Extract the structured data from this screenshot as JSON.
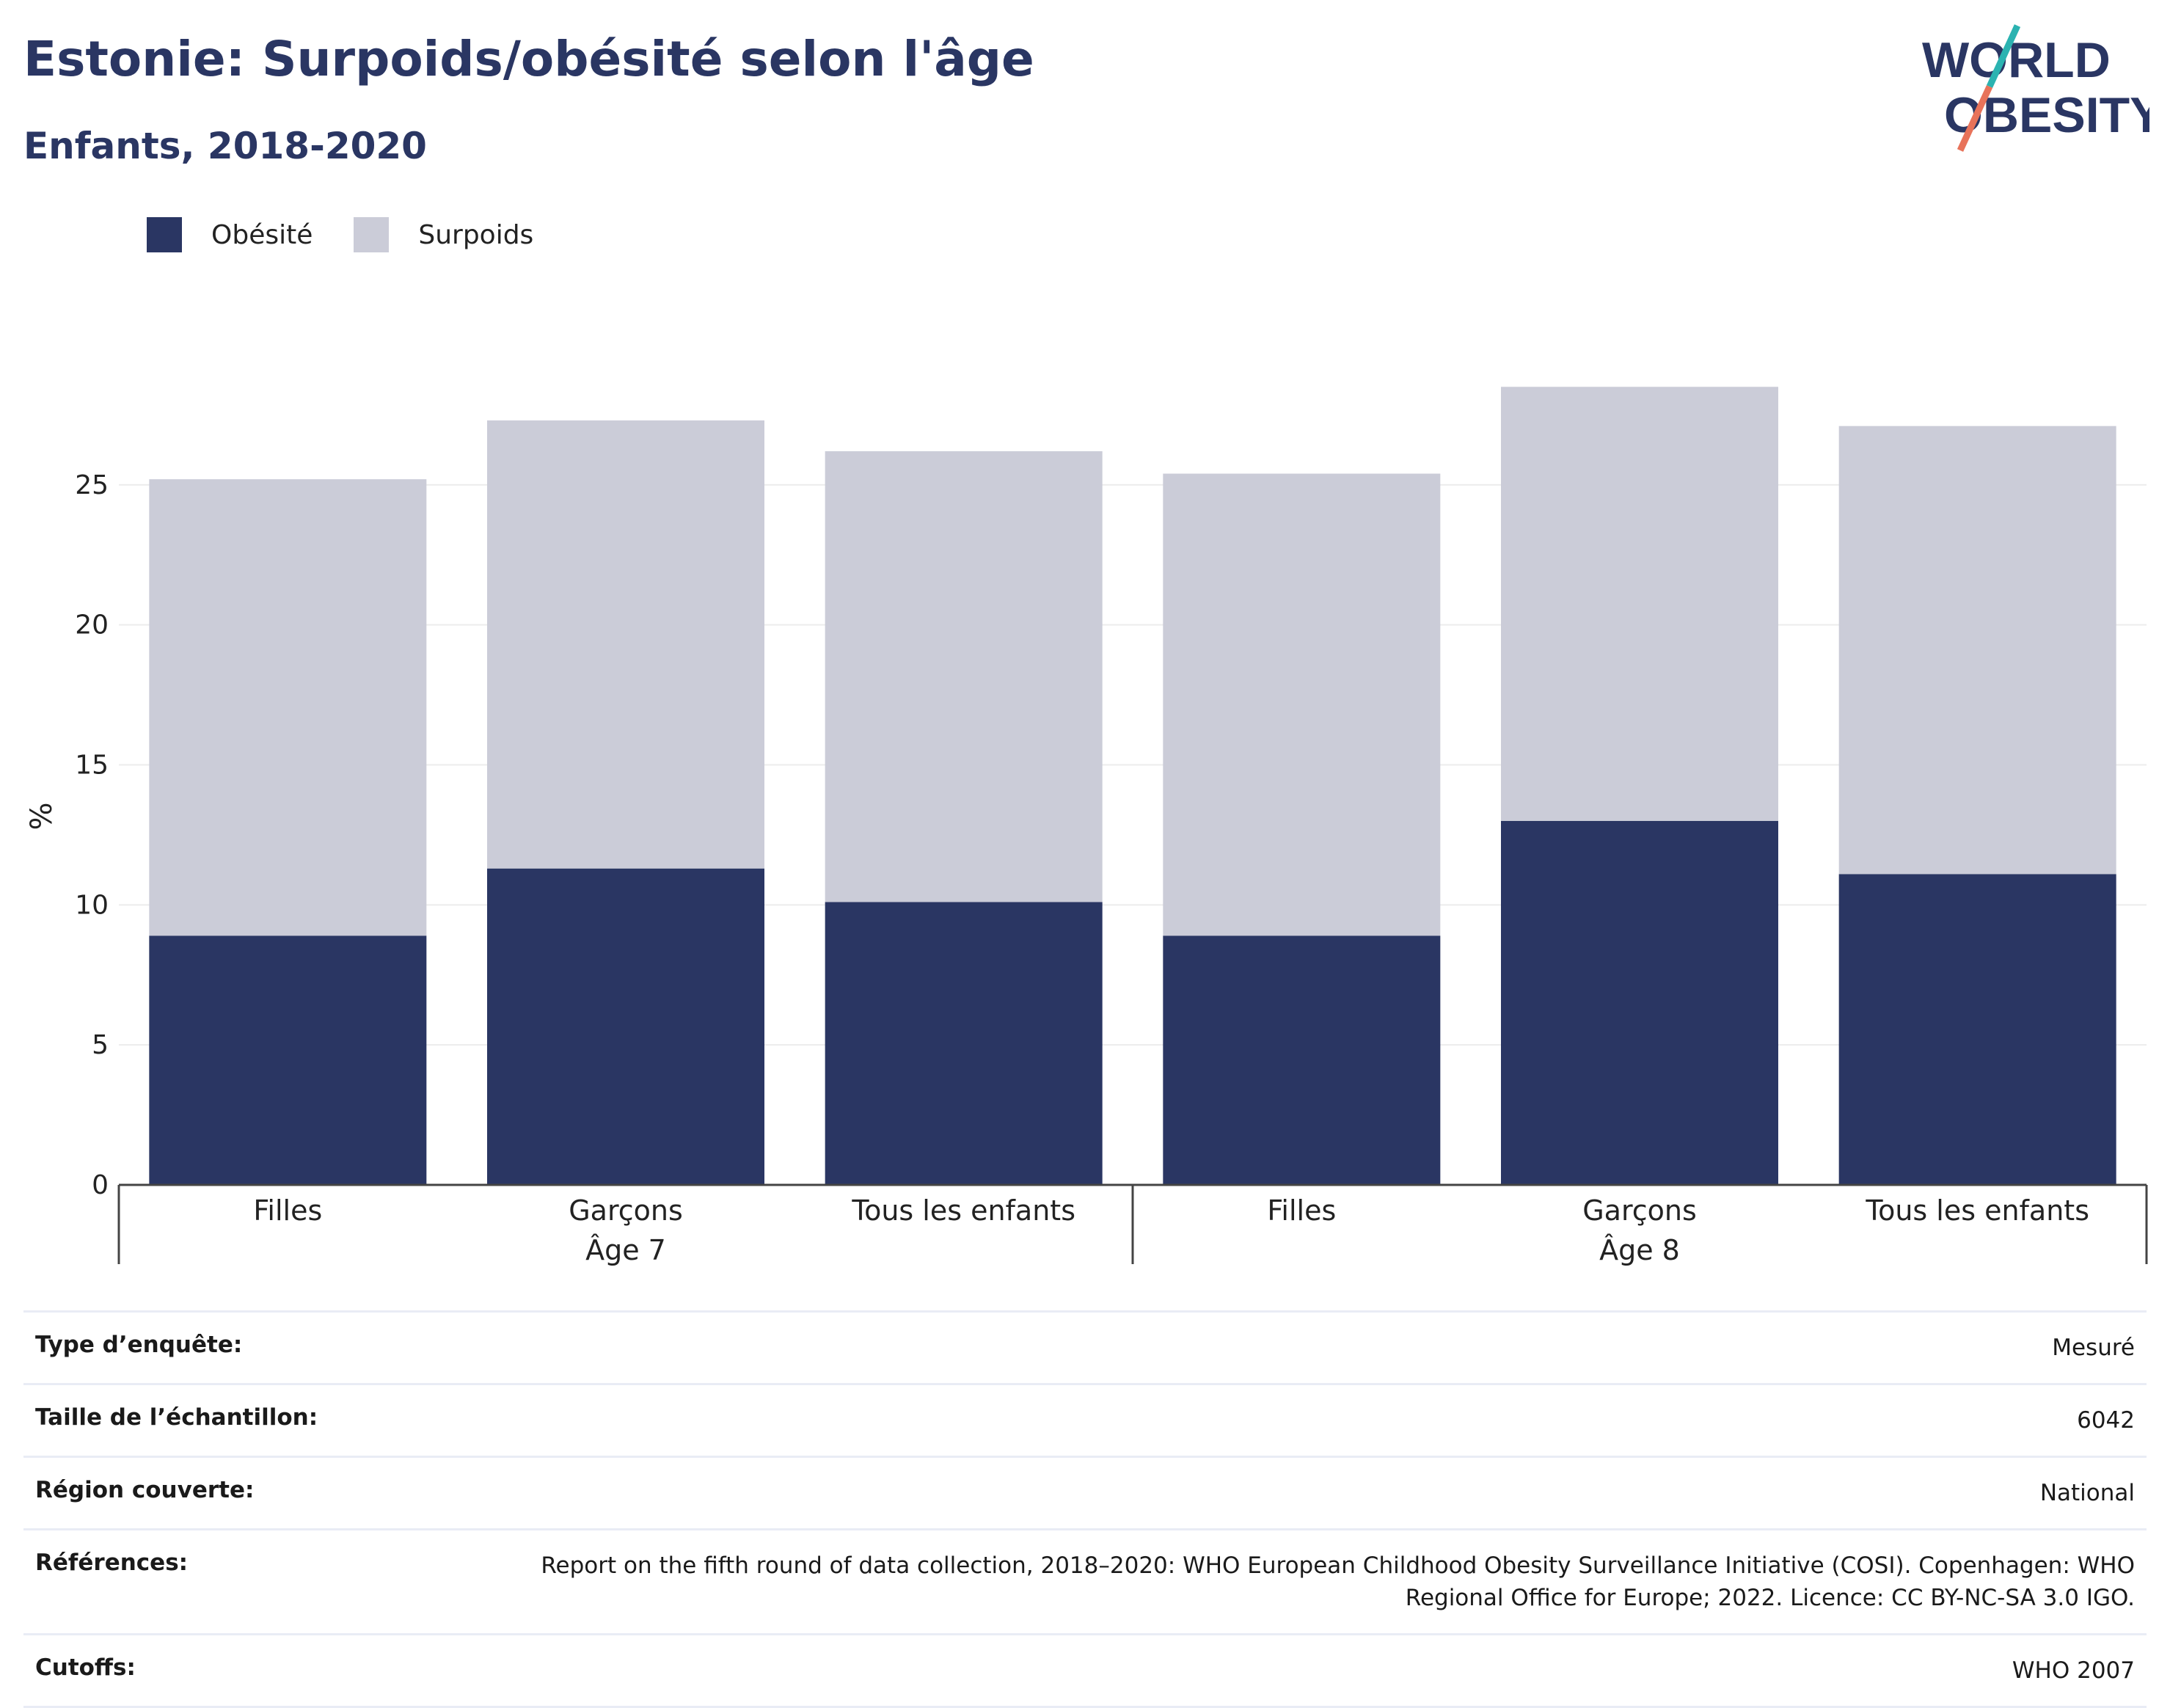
{
  "title": "Estonie: Surpoids/obésité selon l'âge",
  "subtitle": "Enfants, 2018-2020",
  "logo": {
    "line1": "WORLD",
    "line2": "OBESITY",
    "accent_teal": "#2bb3b1",
    "accent_coral": "#e8735a"
  },
  "colors": {
    "obesity": "#2a3663",
    "overweight": "#cbccd8",
    "text": "#2a3663"
  },
  "chart_data": {
    "type": "bar",
    "stacked": true,
    "ylabel": "%",
    "ylim": [
      0,
      30
    ],
    "yticks": [
      0,
      5,
      10,
      15,
      20,
      25
    ],
    "grid": true,
    "legend_position": "top-left",
    "groups": [
      {
        "label": "Âge 7",
        "categories": [
          "Filles",
          "Garçons",
          "Tous les enfants"
        ]
      },
      {
        "label": "Âge 8",
        "categories": [
          "Filles",
          "Garçons",
          "Tous les enfants"
        ]
      }
    ],
    "categories": [
      "Filles",
      "Garçons",
      "Tous les enfants",
      "Filles",
      "Garçons",
      "Tous les enfants"
    ],
    "series": [
      {
        "name": "Obésité",
        "values": [
          8.9,
          11.3,
          10.1,
          8.9,
          13.0,
          11.1
        ]
      },
      {
        "name": "Surpoids",
        "values": [
          16.3,
          16.0,
          16.1,
          16.5,
          15.5,
          16.0
        ]
      }
    ]
  },
  "meta": [
    {
      "label": "Type d’enquête:",
      "value": "Mesuré"
    },
    {
      "label": "Taille de l’échantillon:",
      "value": "6042"
    },
    {
      "label": "Région couverte:",
      "value": "National"
    },
    {
      "label": "Références:",
      "value": "Report on the fifth round of data collection, 2018–2020: WHO European Childhood Obesity Surveillance Initiative (COSI). Copenhagen: WHO Regional Office for Europe; 2022. Licence: CC BY-NC-SA 3.0 IGO."
    },
    {
      "label": "Cutoffs:",
      "value": "WHO 2007"
    }
  ]
}
